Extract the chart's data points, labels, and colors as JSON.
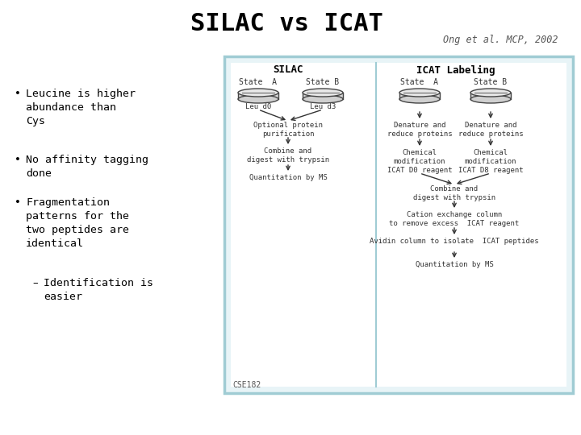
{
  "title": "SILAC vs ICAT",
  "subtitle": "Ong et al. MCP, 2002",
  "box_color": "#a0ccd4",
  "box_bg": "#e8f4f7",
  "silac_header": "SILAC",
  "icat_header": "ICAT Labeling",
  "silac_col1_label": "State  A",
  "silac_col2_label": "State B",
  "icat_col1_label": "State  A",
  "icat_col2_label": "State B",
  "silac_sub1": "Leu d0",
  "silac_sub2": "Leu d3",
  "silac_step1": "Optional protein\npurification",
  "silac_step2": "Combine and\ndigest with trypsin",
  "silac_step3": "Quantitation by MS",
  "icat_step1a": "Denature and\nreduce proteins",
  "icat_step1b": "Denature and\nreduce proteins",
  "icat_step2a": "Chemical\nmodification\nICAT D0 reagent",
  "icat_step2b": "Chemical\nmodification\nICAT D8 reagent",
  "icat_step3": "Combine and\ndigest with trypsin",
  "icat_step4": "Cation exchange column\nto remove excess  ICAT reagent",
  "icat_step5": "Avidin column to isolate  ICAT peptides",
  "icat_step6": "Quantitation by MS",
  "footer": "CSE182",
  "bg_color": "#ffffff",
  "text_color": "#000000",
  "bullet1": "Leucine is higher\nabundance than\nCys",
  "bullet2": "No affinity tagging\ndone",
  "bullet3": "Fragmentation\npatterns for the\ntwo peptides are\nidentical",
  "subbullet": "Identification is\neasier"
}
